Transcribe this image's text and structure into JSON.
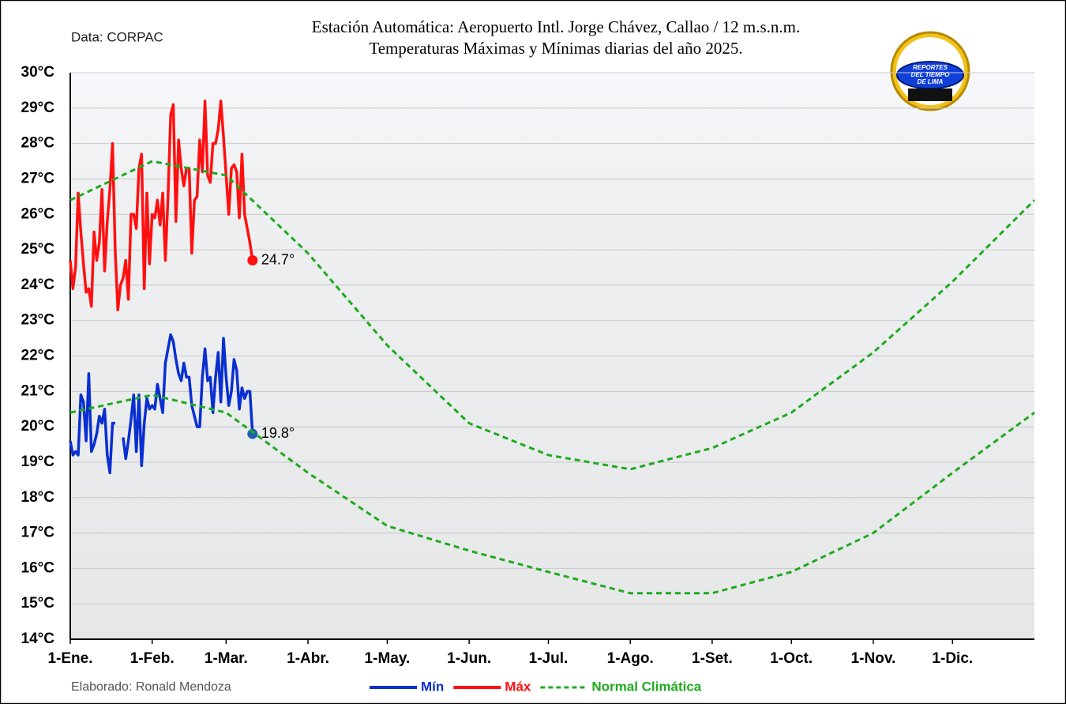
{
  "chart_data": {
    "type": "line",
    "source": "Data: CORPAC",
    "title": "Estación Automática: Aeropuerto Intl. Jorge Chávez, Callao / 12 m.s.n.m.",
    "subtitle": "Temperaturas Máximas y Mínimas diarias del año 2025.",
    "credit": "Elaborado: Ronald Mendoza",
    "logo_text": [
      "REPORTES",
      "DEL TIEMPO",
      "DE LIMA"
    ],
    "xlim": [
      0,
      365
    ],
    "xticks": [
      {
        "value": 0,
        "label": "1-Ene."
      },
      {
        "value": 31,
        "label": "1-Feb."
      },
      {
        "value": 59,
        "label": "1-Mar."
      },
      {
        "value": 90,
        "label": "1-Abr."
      },
      {
        "value": 120,
        "label": "1-May."
      },
      {
        "value": 151,
        "label": "1-Jun."
      },
      {
        "value": 181,
        "label": "1-Jul."
      },
      {
        "value": 212,
        "label": "1-Ago."
      },
      {
        "value": 243,
        "label": "1-Set."
      },
      {
        "value": 273,
        "label": "1-Oct."
      },
      {
        "value": 304,
        "label": "1-Nov."
      },
      {
        "value": 334,
        "label": "1-Dic."
      }
    ],
    "ylim": [
      14,
      30
    ],
    "yticks": [
      {
        "value": 14,
        "label": "14°C"
      },
      {
        "value": 15,
        "label": "15°C"
      },
      {
        "value": 16,
        "label": "16°C"
      },
      {
        "value": 17,
        "label": "17°C"
      },
      {
        "value": 18,
        "label": "18°C"
      },
      {
        "value": 19,
        "label": "19°C"
      },
      {
        "value": 20,
        "label": "20°C"
      },
      {
        "value": 21,
        "label": "21°C"
      },
      {
        "value": 22,
        "label": "22°C"
      },
      {
        "value": 23,
        "label": "23°C"
      },
      {
        "value": 24,
        "label": "24°C"
      },
      {
        "value": 25,
        "label": "25°C"
      },
      {
        "value": 26,
        "label": "26°C"
      },
      {
        "value": 27,
        "label": "27°C"
      },
      {
        "value": 28,
        "label": "28°C"
      },
      {
        "value": 29,
        "label": "29°C"
      },
      {
        "value": 30,
        "label": "30°C"
      }
    ],
    "grid": true,
    "legend": "bottom",
    "series": [
      {
        "name": "Mín",
        "color": "#0a2fd0",
        "dashed": false,
        "x": [
          0,
          1,
          2,
          3,
          4,
          5,
          6,
          7,
          8,
          9,
          10,
          11,
          12,
          13,
          14,
          15,
          16,
          17,
          18,
          19,
          20,
          21,
          22,
          23,
          24,
          25,
          26,
          27,
          28,
          29,
          30,
          31,
          32,
          33,
          34,
          35,
          36,
          37,
          38,
          39,
          40,
          41,
          42,
          43,
          44,
          45,
          46,
          47,
          48,
          49,
          50,
          51,
          52,
          53,
          54,
          55,
          56,
          57,
          58,
          59,
          60,
          61,
          62,
          63,
          64,
          65,
          66,
          67,
          68,
          69
        ],
        "values": [
          19.6,
          19.2,
          19.3,
          19.2,
          20.9,
          20.7,
          19.6,
          21.5,
          19.3,
          19.5,
          19.8,
          20.3,
          20.1,
          20.5,
          19.2,
          18.7,
          20.1,
          20.1,
          null,
          null,
          19.7,
          19.1,
          19.6,
          20.2,
          20.9,
          19.3,
          20.9,
          18.9,
          20.1,
          20.8,
          20.5,
          20.6,
          20.5,
          21.2,
          20.8,
          20.4,
          21.8,
          22.2,
          22.6,
          22.4,
          21.9,
          21.5,
          21.3,
          21.8,
          21.4,
          21.4,
          20.6,
          20.3,
          20.0,
          20.0,
          21.4,
          22.2,
          21.3,
          21.4,
          20.4,
          21.4,
          22.1,
          20.7,
          22.5,
          21.4,
          20.6,
          21.0,
          21.9,
          21.6,
          20.5,
          21.1,
          20.8,
          21.0,
          21.0,
          19.8
        ],
        "value_labels": [
          null,
          null,
          null,
          null,
          null,
          null,
          null,
          null,
          null,
          null,
          null,
          null,
          null,
          null,
          null,
          null,
          null,
          null,
          null,
          null,
          null,
          null,
          null,
          null,
          null,
          null,
          null,
          null,
          null,
          null,
          null,
          null,
          null,
          null,
          null,
          null,
          null,
          null,
          null,
          null,
          null,
          null,
          null,
          null,
          null,
          null,
          null,
          null,
          null,
          null,
          null,
          null,
          null,
          null,
          null,
          null,
          null,
          null,
          null,
          null,
          null,
          null,
          null,
          null,
          null,
          null,
          null,
          null,
          null,
          "19.8°"
        ],
        "end_marker_color": "#1f5fb0"
      },
      {
        "name": "Máx",
        "color": "#ff1010",
        "dashed": false,
        "x": [
          0,
          1,
          2,
          3,
          4,
          5,
          6,
          7,
          8,
          9,
          10,
          11,
          12,
          13,
          14,
          15,
          16,
          17,
          18,
          19,
          20,
          21,
          22,
          23,
          24,
          25,
          26,
          27,
          28,
          29,
          30,
          31,
          32,
          33,
          34,
          35,
          36,
          37,
          38,
          39,
          40,
          41,
          42,
          43,
          44,
          45,
          46,
          47,
          48,
          49,
          50,
          51,
          52,
          53,
          54,
          55,
          56,
          57,
          58,
          59,
          60,
          61,
          62,
          63,
          64,
          65,
          66,
          67,
          68,
          69
        ],
        "values": [
          24.7,
          23.9,
          24.5,
          26.6,
          25.5,
          24.6,
          23.8,
          23.9,
          23.4,
          25.5,
          24.7,
          25.2,
          26.7,
          24.4,
          25.8,
          26.7,
          28.0,
          25.0,
          23.3,
          24.0,
          24.2,
          24.7,
          23.6,
          26.0,
          26.0,
          25.6,
          27.3,
          27.7,
          23.9,
          26.6,
          24.6,
          26.0,
          25.9,
          26.4,
          25.7,
          26.6,
          24.7,
          26.5,
          28.8,
          29.1,
          25.8,
          28.1,
          27.3,
          26.8,
          27.3,
          27.3,
          24.9,
          26.4,
          26.5,
          28.1,
          27.2,
          29.2,
          27.1,
          26.9,
          28.0,
          28.0,
          28.4,
          29.2,
          28.2,
          27.1,
          26.0,
          27.3,
          27.4,
          27.2,
          25.9,
          27.7,
          26.0,
          25.6,
          25.2,
          24.7
        ],
        "value_labels": [
          null,
          null,
          null,
          null,
          null,
          null,
          null,
          null,
          null,
          null,
          null,
          null,
          null,
          null,
          null,
          null,
          null,
          null,
          null,
          null,
          null,
          null,
          null,
          null,
          null,
          null,
          null,
          null,
          null,
          null,
          null,
          null,
          null,
          null,
          null,
          null,
          null,
          null,
          null,
          null,
          null,
          null,
          null,
          null,
          null,
          null,
          null,
          null,
          null,
          null,
          null,
          null,
          null,
          null,
          null,
          null,
          null,
          null,
          null,
          null,
          null,
          null,
          null,
          null,
          null,
          null,
          null,
          null,
          null,
          "24.7°"
        ],
        "end_marker_color": "#ff1010"
      },
      {
        "name": "Normal Climática",
        "color": "#1eaa1e",
        "dashed": true,
        "x": [
          0,
          31,
          59,
          90,
          120,
          151,
          181,
          212,
          243,
          273,
          304,
          334,
          365
        ],
        "values": [
          26.4,
          27.5,
          27.1,
          24.9,
          22.3,
          20.1,
          19.2,
          18.8,
          19.4,
          20.4,
          22.1,
          24.1,
          26.4
        ]
      },
      {
        "color": "#1eaa1e",
        "dashed": true,
        "x": [
          0,
          31,
          59,
          90,
          120,
          151,
          181,
          212,
          243,
          273,
          304,
          334,
          365
        ],
        "values": [
          20.4,
          20.9,
          20.4,
          18.7,
          17.2,
          16.5,
          15.9,
          15.3,
          15.3,
          15.9,
          17.0,
          18.7,
          20.4
        ]
      }
    ]
  }
}
